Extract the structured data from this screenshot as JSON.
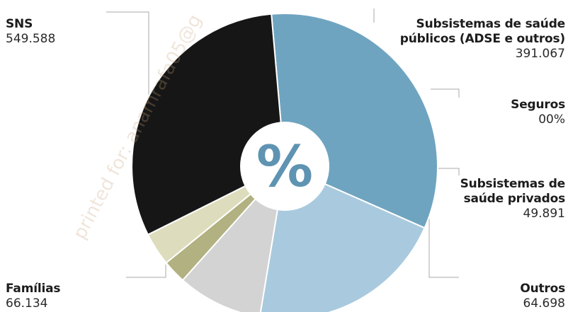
{
  "chart_data": {
    "type": "pie",
    "center_label": "%",
    "watermark": "printed for: anamrafa05@g",
    "slices": [
      {
        "name": "SNS",
        "value_label": "549.588",
        "share": 0.33,
        "color": "#6fa4c0"
      },
      {
        "name": "Subsistemas de saúde públicos (ADSE e outros)",
        "value_label": "391.067",
        "share": 0.21,
        "color": "#a9cade"
      },
      {
        "name": "Seguros",
        "value_label": "00%",
        "share": 0.09,
        "color": "#d3d3d3"
      },
      {
        "name": "Subsistemas de saúde privados",
        "value_label": "49.891",
        "share": 0.025,
        "color": "#b1b181"
      },
      {
        "name": "Outros",
        "value_label": "64.698",
        "share": 0.035,
        "color": "#dddcbc"
      },
      {
        "name": "Famílias",
        "value_label": "66.134",
        "share": 0.31,
        "color": "#161616"
      }
    ]
  }
}
